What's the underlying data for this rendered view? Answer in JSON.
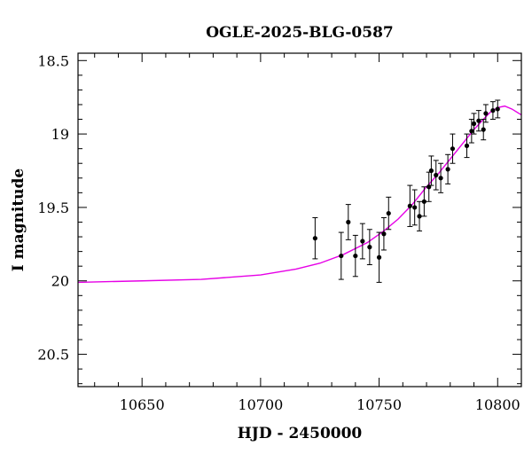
{
  "chart_data": {
    "type": "scatter",
    "title": "OGLE-2025-BLG-0587",
    "xlabel": "HJD - 2450000",
    "ylabel": "I magnitude",
    "xlim": [
      10623,
      10810
    ],
    "ylim": [
      20.72,
      18.45
    ],
    "y_inverted": true,
    "grid": false,
    "x_ticks": [
      {
        "value": 10650,
        "label": "10650"
      },
      {
        "value": 10700,
        "label": "10700"
      },
      {
        "value": 10750,
        "label": "10750"
      },
      {
        "value": 10800,
        "label": "10800"
      }
    ],
    "y_ticks": [
      {
        "value": 18.5,
        "label": "18.5"
      },
      {
        "value": 19,
        "label": "19"
      },
      {
        "value": 19.5,
        "label": "19.5"
      },
      {
        "value": 20,
        "label": "20"
      },
      {
        "value": 20.5,
        "label": "20.5"
      }
    ],
    "model_color": "#e600e6",
    "point_color": "#000000",
    "model_curve": [
      [
        10623,
        20.01
      ],
      [
        10650,
        20.0
      ],
      [
        10675,
        19.99
      ],
      [
        10700,
        19.96
      ],
      [
        10715,
        19.92
      ],
      [
        10725,
        19.88
      ],
      [
        10735,
        19.82
      ],
      [
        10745,
        19.74
      ],
      [
        10752,
        19.66
      ],
      [
        10758,
        19.58
      ],
      [
        10764,
        19.48
      ],
      [
        10770,
        19.36
      ],
      [
        10775,
        19.27
      ],
      [
        10780,
        19.17
      ],
      [
        10785,
        19.07
      ],
      [
        10790,
        18.97
      ],
      [
        10794,
        18.9
      ],
      [
        10797,
        18.85
      ],
      [
        10800,
        18.82
      ],
      [
        10803,
        18.81
      ],
      [
        10806,
        18.83
      ],
      [
        10810,
        18.87
      ]
    ],
    "points": [
      {
        "x": 10723,
        "y": 19.71,
        "err": 0.14
      },
      {
        "x": 10734,
        "y": 19.83,
        "err": 0.16
      },
      {
        "x": 10737,
        "y": 19.6,
        "err": 0.12
      },
      {
        "x": 10740,
        "y": 19.83,
        "err": 0.14
      },
      {
        "x": 10743,
        "y": 19.73,
        "err": 0.12
      },
      {
        "x": 10746,
        "y": 19.77,
        "err": 0.12
      },
      {
        "x": 10750,
        "y": 19.84,
        "err": 0.17
      },
      {
        "x": 10752,
        "y": 19.68,
        "err": 0.11
      },
      {
        "x": 10754,
        "y": 19.54,
        "err": 0.11
      },
      {
        "x": 10763,
        "y": 19.49,
        "err": 0.14
      },
      {
        "x": 10765,
        "y": 19.5,
        "err": 0.12
      },
      {
        "x": 10767,
        "y": 19.56,
        "err": 0.1
      },
      {
        "x": 10769,
        "y": 19.46,
        "err": 0.1
      },
      {
        "x": 10771,
        "y": 19.36,
        "err": 0.1
      },
      {
        "x": 10772,
        "y": 19.25,
        "err": 0.1
      },
      {
        "x": 10774,
        "y": 19.28,
        "err": 0.1
      },
      {
        "x": 10776,
        "y": 19.3,
        "err": 0.1
      },
      {
        "x": 10779,
        "y": 19.24,
        "err": 0.1
      },
      {
        "x": 10781,
        "y": 19.1,
        "err": 0.1
      },
      {
        "x": 10787,
        "y": 19.08,
        "err": 0.08
      },
      {
        "x": 10789,
        "y": 18.98,
        "err": 0.08
      },
      {
        "x": 10790,
        "y": 18.93,
        "err": 0.07
      },
      {
        "x": 10792,
        "y": 18.91,
        "err": 0.07
      },
      {
        "x": 10794,
        "y": 18.97,
        "err": 0.07
      },
      {
        "x": 10795,
        "y": 18.86,
        "err": 0.06
      },
      {
        "x": 10798,
        "y": 18.84,
        "err": 0.06
      },
      {
        "x": 10800,
        "y": 18.83,
        "err": 0.06
      }
    ]
  }
}
